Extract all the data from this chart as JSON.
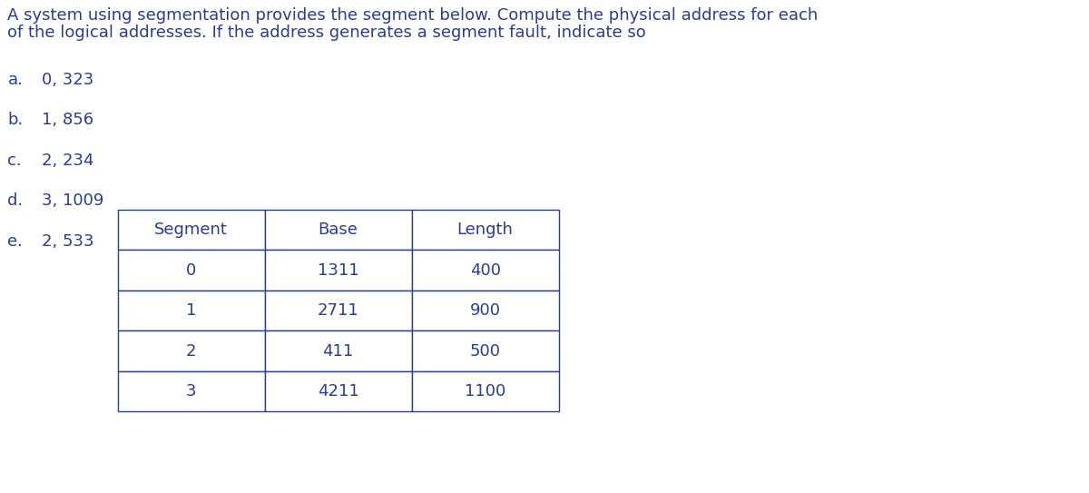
{
  "title_line1": "A system using segmentation provides the segment below. Compute the physical address for each",
  "title_line2": "of the logical addresses. If the address generates a segment fault, indicate so",
  "items": [
    {
      "label": "a.",
      "text": "0, 323"
    },
    {
      "label": "b.",
      "text": "1, 856"
    },
    {
      "label": "c.",
      "text": "2, 234"
    },
    {
      "label": "d.",
      "text": "3, 1009"
    },
    {
      "label": "e.",
      "text": "2, 533"
    }
  ],
  "table_headers": [
    "Segment",
    "Base",
    "Length"
  ],
  "table_data": [
    [
      "0",
      "1311",
      "400"
    ],
    [
      "1",
      "2711",
      "900"
    ],
    [
      "2",
      "411",
      "500"
    ],
    [
      "3",
      "4211",
      "1100"
    ]
  ],
  "text_color": "#2a3d8f",
  "background_color": "#ffffff",
  "title_fontsize": 13.0,
  "body_fontsize": 13.0,
  "table_fontsize": 13.0
}
